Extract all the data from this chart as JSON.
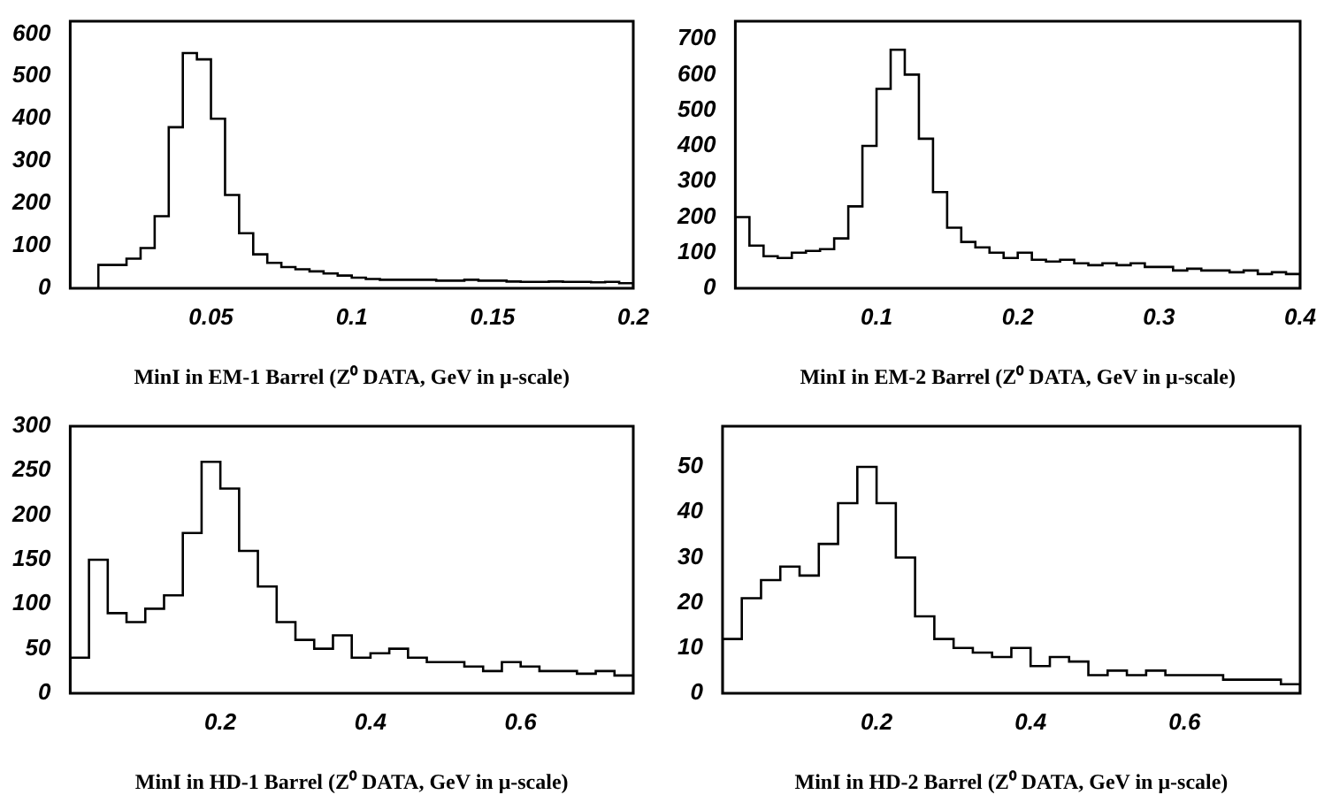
{
  "chart_data": [
    {
      "type": "histogram",
      "xlabel": "MinI in EM-1 Barrel (Z⁰ DATA, GeV in μ-scale)",
      "color": "#000000",
      "grid": false,
      "bins": [
        0.01,
        0.015,
        0.02,
        0.025,
        0.03,
        0.035,
        0.04,
        0.045,
        0.05,
        0.055,
        0.06,
        0.065,
        0.07,
        0.075,
        0.08,
        0.085,
        0.09,
        0.095,
        0.1,
        0.105,
        0.11,
        0.115,
        0.12,
        0.125,
        0.13,
        0.135,
        0.14,
        0.145,
        0.15,
        0.155,
        0.16,
        0.165,
        0.17,
        0.175,
        0.18,
        0.185,
        0.19,
        0.195,
        0.2
      ],
      "values": [
        55,
        55,
        70,
        95,
        170,
        380,
        555,
        540,
        400,
        220,
        130,
        80,
        60,
        50,
        45,
        40,
        35,
        30,
        25,
        22,
        20,
        20,
        20,
        20,
        18,
        18,
        20,
        18,
        18,
        16,
        15,
        15,
        16,
        15,
        15,
        14,
        15,
        12
      ],
      "xlim": [
        0,
        0.2
      ],
      "ylim": [
        0,
        630
      ],
      "xticks": [
        0.05,
        0.1,
        0.15,
        0.2
      ],
      "yticks": [
        0,
        100,
        200,
        300,
        400,
        500,
        600
      ]
    },
    {
      "type": "histogram",
      "xlabel": "MinI in EM-2 Barrel (Z⁰ DATA, GeV in μ-scale)",
      "color": "#000000",
      "grid": false,
      "bins": [
        0,
        0.01,
        0.02,
        0.03,
        0.04,
        0.05,
        0.06,
        0.07,
        0.08,
        0.09,
        0.1,
        0.11,
        0.12,
        0.13,
        0.14,
        0.15,
        0.16,
        0.17,
        0.18,
        0.19,
        0.2,
        0.21,
        0.22,
        0.23,
        0.24,
        0.25,
        0.26,
        0.27,
        0.28,
        0.29,
        0.3,
        0.31,
        0.32,
        0.33,
        0.34,
        0.35,
        0.36,
        0.37,
        0.38,
        0.39,
        0.4
      ],
      "values": [
        200,
        120,
        90,
        85,
        100,
        105,
        110,
        140,
        230,
        400,
        560,
        670,
        600,
        420,
        270,
        170,
        130,
        115,
        100,
        85,
        100,
        80,
        75,
        80,
        70,
        65,
        70,
        65,
        70,
        60,
        60,
        50,
        55,
        50,
        50,
        45,
        50,
        40,
        45,
        40
      ],
      "xlim": [
        0,
        0.4
      ],
      "ylim": [
        0,
        750
      ],
      "xticks": [
        0.1,
        0.2,
        0.3,
        0.4
      ],
      "yticks": [
        0,
        100,
        200,
        300,
        400,
        500,
        600,
        700
      ]
    },
    {
      "type": "histogram",
      "xlabel": "MinI in HD-1 Barrel (Z⁰ DATA, GeV in μ-scale)",
      "color": "#000000",
      "grid": false,
      "bins": [
        0,
        0.025,
        0.05,
        0.075,
        0.1,
        0.125,
        0.15,
        0.175,
        0.2,
        0.225,
        0.25,
        0.275,
        0.3,
        0.325,
        0.35,
        0.375,
        0.4,
        0.425,
        0.45,
        0.475,
        0.5,
        0.525,
        0.55,
        0.575,
        0.6,
        0.625,
        0.65,
        0.675,
        0.7,
        0.725,
        0.75
      ],
      "values": [
        40,
        150,
        90,
        80,
        95,
        110,
        180,
        260,
        230,
        160,
        120,
        80,
        60,
        50,
        65,
        40,
        45,
        50,
        40,
        35,
        35,
        30,
        25,
        35,
        30,
        25,
        25,
        22,
        25,
        20
      ],
      "xlim": [
        0,
        0.75
      ],
      "ylim": [
        0,
        300
      ],
      "xticks": [
        0.2,
        0.4,
        0.6
      ],
      "yticks": [
        0,
        50,
        100,
        150,
        200,
        250,
        300
      ]
    },
    {
      "type": "histogram",
      "xlabel": "MinI in HD-2 Barrel (Z⁰ DATA, GeV in μ-scale)",
      "color": "#000000",
      "grid": false,
      "bins": [
        0,
        0.025,
        0.05,
        0.075,
        0.1,
        0.125,
        0.15,
        0.175,
        0.2,
        0.225,
        0.25,
        0.275,
        0.3,
        0.325,
        0.35,
        0.375,
        0.4,
        0.425,
        0.45,
        0.475,
        0.5,
        0.525,
        0.55,
        0.575,
        0.6,
        0.625,
        0.65,
        0.675,
        0.7,
        0.725,
        0.75
      ],
      "values": [
        12,
        21,
        25,
        28,
        26,
        33,
        42,
        50,
        42,
        30,
        17,
        12,
        10,
        9,
        8,
        10,
        6,
        8,
        7,
        4,
        5,
        4,
        5,
        4,
        4,
        4,
        3,
        3,
        3,
        2
      ],
      "xlim": [
        0,
        0.75
      ],
      "ylim": [
        0,
        59
      ],
      "xticks": [
        0.2,
        0.4,
        0.6
      ],
      "yticks": [
        0,
        10,
        20,
        30,
        40,
        50
      ]
    }
  ]
}
